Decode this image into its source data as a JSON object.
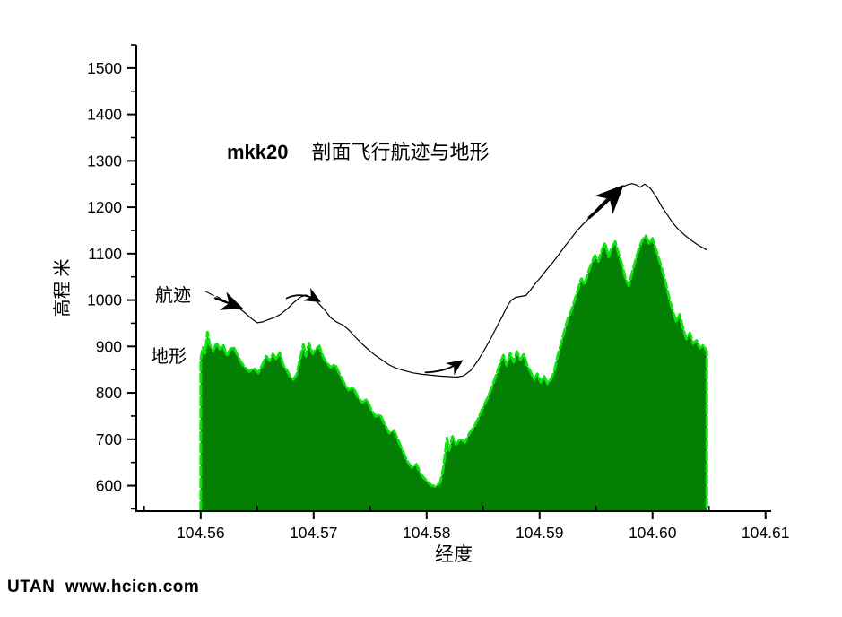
{
  "watermark": {
    "text": "UTAN  www.hcicn.com",
    "color": "#1f3c78"
  },
  "chart_data": {
    "type": "area+line",
    "title": {
      "prefix": "mkk20",
      "main": "剖面飞行航迹与地形"
    },
    "xlabel": "经度",
    "ylabel": "高程 米",
    "legend_position": "inline-labels",
    "grid": false,
    "x_axis": {
      "range": [
        104.5543,
        104.6105
      ],
      "tick_values": [
        104.56,
        104.57,
        104.58,
        104.59,
        104.6,
        104.61
      ],
      "tick_labels": [
        "104.56",
        "104.57",
        "104.58",
        "104.59",
        "104.60",
        "104.61"
      ],
      "minor_tick_values": [
        104.555,
        104.565,
        104.575,
        104.585,
        104.595,
        104.605
      ]
    },
    "y_axis": {
      "range": [
        545,
        1550
      ],
      "tick_values": [
        600,
        700,
        800,
        900,
        1000,
        1100,
        1200,
        1300,
        1400,
        1500
      ],
      "tick_labels": [
        "600",
        "700",
        "800",
        "900",
        "1000",
        "1100",
        "1200",
        "1300",
        "1400",
        "1500"
      ],
      "minor_tick_values": [
        550,
        650,
        750,
        850,
        950,
        1050,
        1150,
        1250,
        1350,
        1450,
        1550
      ]
    },
    "series": [
      {
        "name": "航迹",
        "type": "line",
        "color": "#000000",
        "points": [
          [
            104.5614,
            1008
          ],
          [
            104.562,
            1000
          ],
          [
            104.5626,
            992
          ],
          [
            104.5632,
            986
          ],
          [
            104.5638,
            975
          ],
          [
            104.5644,
            962
          ],
          [
            104.565,
            951
          ],
          [
            104.5655,
            953
          ],
          [
            104.566,
            958
          ],
          [
            104.5666,
            963
          ],
          [
            104.5671,
            970
          ],
          [
            104.5677,
            982
          ],
          [
            104.5683,
            996
          ],
          [
            104.5688,
            1006
          ],
          [
            104.5693,
            1011
          ],
          [
            104.5698,
            1006
          ],
          [
            104.5704,
            994
          ],
          [
            104.571,
            978
          ],
          [
            104.5715,
            962
          ],
          [
            104.572,
            953
          ],
          [
            104.5726,
            946
          ],
          [
            104.5731,
            936
          ],
          [
            104.5737,
            920
          ],
          [
            104.5743,
            905
          ],
          [
            104.5749,
            892
          ],
          [
            104.5755,
            880
          ],
          [
            104.5761,
            870
          ],
          [
            104.5767,
            860
          ],
          [
            104.5773,
            853
          ],
          [
            104.578,
            848
          ],
          [
            104.5788,
            843
          ],
          [
            104.5796,
            840
          ],
          [
            104.5804,
            838
          ],
          [
            104.5812,
            836
          ],
          [
            104.582,
            835
          ],
          [
            104.5827,
            834
          ],
          [
            104.5833,
            837
          ],
          [
            104.5839,
            848
          ],
          [
            104.5845,
            868
          ],
          [
            104.5851,
            892
          ],
          [
            104.5857,
            918
          ],
          [
            104.5862,
            942
          ],
          [
            104.5867,
            965
          ],
          [
            104.5871,
            985
          ],
          [
            104.5875,
            1000
          ],
          [
            104.5879,
            1006
          ],
          [
            104.5884,
            1008
          ],
          [
            104.5888,
            1010
          ],
          [
            104.5892,
            1022
          ],
          [
            104.5897,
            1038
          ],
          [
            104.5902,
            1052
          ],
          [
            104.5907,
            1068
          ],
          [
            104.5912,
            1082
          ],
          [
            104.5917,
            1098
          ],
          [
            104.5922,
            1115
          ],
          [
            104.5927,
            1130
          ],
          [
            104.5932,
            1146
          ],
          [
            104.5937,
            1160
          ],
          [
            104.5942,
            1172
          ],
          [
            104.5947,
            1186
          ],
          [
            104.5952,
            1200
          ],
          [
            104.5957,
            1212
          ],
          [
            104.5962,
            1226
          ],
          [
            104.5967,
            1236
          ],
          [
            104.5972,
            1242
          ],
          [
            104.5977,
            1248
          ],
          [
            104.5982,
            1251
          ],
          [
            104.5986,
            1248
          ],
          [
            104.5989,
            1243
          ],
          [
            104.5993,
            1250
          ],
          [
            104.5998,
            1241
          ],
          [
            104.6003,
            1224
          ],
          [
            104.6008,
            1202
          ],
          [
            104.6013,
            1184
          ],
          [
            104.6018,
            1166
          ],
          [
            104.6023,
            1152
          ],
          [
            104.6028,
            1141
          ],
          [
            104.6034,
            1129
          ],
          [
            104.604,
            1119
          ],
          [
            104.6048,
            1108
          ]
        ]
      },
      {
        "name": "地形",
        "type": "area",
        "fill_color": "#038003",
        "edge_color": "#0de30d",
        "baseline": 547,
        "points": [
          [
            104.56,
            872
          ],
          [
            104.5602,
            898
          ],
          [
            104.5604,
            885
          ],
          [
            104.5606,
            931
          ],
          [
            104.5608,
            904
          ],
          [
            104.5611,
            890
          ],
          [
            104.5614,
            908
          ],
          [
            104.5617,
            894
          ],
          [
            104.562,
            903
          ],
          [
            104.5623,
            880
          ],
          [
            104.5626,
            893
          ],
          [
            104.5629,
            899
          ],
          [
            104.5632,
            884
          ],
          [
            104.5635,
            869
          ],
          [
            104.5639,
            855
          ],
          [
            104.5643,
            846
          ],
          [
            104.5647,
            853
          ],
          [
            104.5651,
            843
          ],
          [
            104.5655,
            862
          ],
          [
            104.5658,
            879
          ],
          [
            104.5661,
            869
          ],
          [
            104.5664,
            884
          ],
          [
            104.5667,
            872
          ],
          [
            104.567,
            887
          ],
          [
            104.5673,
            860
          ],
          [
            104.5676,
            850
          ],
          [
            104.5679,
            836
          ],
          [
            104.5682,
            829
          ],
          [
            104.5685,
            839
          ],
          [
            104.5688,
            874
          ],
          [
            104.5691,
            904
          ],
          [
            104.5693,
            879
          ],
          [
            104.5696,
            907
          ],
          [
            104.5699,
            884
          ],
          [
            104.5702,
            894
          ],
          [
            104.5705,
            901
          ],
          [
            104.5708,
            879
          ],
          [
            104.5711,
            867
          ],
          [
            104.5715,
            855
          ],
          [
            104.5719,
            861
          ],
          [
            104.5723,
            840
          ],
          [
            104.5727,
            821
          ],
          [
            104.5731,
            806
          ],
          [
            104.5735,
            812
          ],
          [
            104.5739,
            791
          ],
          [
            104.5743,
            779
          ],
          [
            104.5747,
            786
          ],
          [
            104.5751,
            763
          ],
          [
            104.5755,
            749
          ],
          [
            104.5759,
            753
          ],
          [
            104.5763,
            731
          ],
          [
            104.5767,
            713
          ],
          [
            104.5771,
            719
          ],
          [
            104.5775,
            697
          ],
          [
            104.5779,
            674
          ],
          [
            104.5783,
            652
          ],
          [
            104.5787,
            639
          ],
          [
            104.5791,
            646
          ],
          [
            104.5795,
            624
          ],
          [
            104.5799,
            613
          ],
          [
            104.5804,
            601
          ],
          [
            104.5808,
            598
          ],
          [
            104.5812,
            606
          ],
          [
            104.5815,
            641
          ],
          [
            104.5818,
            703
          ],
          [
            104.582,
            676
          ],
          [
            104.5823,
            706
          ],
          [
            104.5826,
            689
          ],
          [
            104.583,
            701
          ],
          [
            104.5834,
            693
          ],
          [
            104.5838,
            713
          ],
          [
            104.5842,
            726
          ],
          [
            104.5846,
            746
          ],
          [
            104.585,
            769
          ],
          [
            104.5854,
            789
          ],
          [
            104.5858,
            813
          ],
          [
            104.5862,
            841
          ],
          [
            104.5865,
            863
          ],
          [
            104.5868,
            881
          ],
          [
            104.5871,
            859
          ],
          [
            104.5874,
            886
          ],
          [
            104.5877,
            866
          ],
          [
            104.588,
            889
          ],
          [
            104.5883,
            871
          ],
          [
            104.5886,
            883
          ],
          [
            104.5889,
            859
          ],
          [
            104.5892,
            846
          ],
          [
            104.5895,
            829
          ],
          [
            104.5898,
            841
          ],
          [
            104.5901,
            823
          ],
          [
            104.5904,
            836
          ],
          [
            104.5907,
            819
          ],
          [
            104.591,
            829
          ],
          [
            104.5913,
            846
          ],
          [
            104.5916,
            879
          ],
          [
            104.5919,
            906
          ],
          [
            104.5922,
            933
          ],
          [
            104.5925,
            959
          ],
          [
            104.5928,
            976
          ],
          [
            104.5931,
            999
          ],
          [
            104.5934,
            1023
          ],
          [
            104.5937,
            1046
          ],
          [
            104.594,
            1033
          ],
          [
            104.5943,
            1059
          ],
          [
            104.5946,
            1079
          ],
          [
            104.5949,
            1096
          ],
          [
            104.5952,
            1083
          ],
          [
            104.5955,
            1106
          ],
          [
            104.5958,
            1123
          ],
          [
            104.5961,
            1093
          ],
          [
            104.5964,
            1113
          ],
          [
            104.5967,
            1126
          ],
          [
            104.597,
            1099
          ],
          [
            104.5973,
            1076
          ],
          [
            104.5976,
            1046
          ],
          [
            104.5979,
            1031
          ],
          [
            104.5982,
            1059
          ],
          [
            104.5985,
            1086
          ],
          [
            104.5988,
            1111
          ],
          [
            104.5991,
            1129
          ],
          [
            104.5994,
            1139
          ],
          [
            104.5997,
            1121
          ],
          [
            104.6,
            1133
          ],
          [
            104.6003,
            1109
          ],
          [
            104.6006,
            1086
          ],
          [
            104.6009,
            1061
          ],
          [
            104.6012,
            1033
          ],
          [
            104.6015,
            1001
          ],
          [
            104.6018,
            976
          ],
          [
            104.6021,
            953
          ],
          [
            104.6024,
            969
          ],
          [
            104.6027,
            939
          ],
          [
            104.603,
            916
          ],
          [
            104.6033,
            929
          ],
          [
            104.6036,
            906
          ],
          [
            104.6039,
            913
          ],
          [
            104.6042,
            896
          ],
          [
            104.6045,
            903
          ],
          [
            104.6048,
            889
          ]
        ]
      }
    ],
    "annotations": {
      "label_track": "航迹",
      "label_terrain": "地形",
      "leader": {
        "points": [
          [
            104.5604,
            1019
          ],
          [
            104.5612,
            1009
          ]
        ]
      },
      "arrows": [
        {
          "type": "straight",
          "width": 2.4,
          "points": [
            [
              104.5613,
              1004
            ],
            [
              104.5634,
              985
            ]
          ]
        },
        {
          "type": "curve",
          "width": 1.8,
          "points": [
            [
              104.5676,
              1004
            ],
            [
              104.5689,
              1019
            ],
            [
              104.5704,
              999
            ]
          ]
        },
        {
          "type": "curve",
          "width": 1.8,
          "points": [
            [
              104.5799,
              844
            ],
            [
              104.5817,
              845
            ],
            [
              104.583,
              867
            ]
          ]
        },
        {
          "type": "curve",
          "width": 3.2,
          "points": [
            [
              104.5944,
              1178
            ],
            [
              104.5956,
              1203
            ],
            [
              104.5971,
              1240
            ]
          ]
        }
      ]
    }
  }
}
